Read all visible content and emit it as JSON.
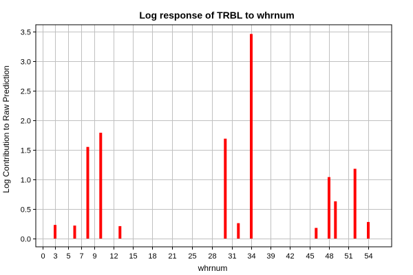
{
  "chart_data": {
    "type": "bar",
    "title": "Log response of TRBL to whrnum",
    "xlabel": "whrnum",
    "ylabel": "Log Contribution to Raw Prediction",
    "x_ticks": [
      "0",
      "3",
      "5",
      "7",
      "9",
      "12",
      "15",
      "18",
      "21",
      "25",
      "28",
      "31",
      "34",
      "39",
      "42",
      "45",
      "48",
      "51",
      "54"
    ],
    "y_ticks": [
      "0.0",
      "0.5",
      "1.0",
      "1.5",
      "2.0",
      "2.5",
      "3.0",
      "3.5"
    ],
    "ylim": [
      -0.15,
      3.6
    ],
    "grid": true,
    "colors": {
      "bar": "#ff0000",
      "grid": "#c0c0c0",
      "frame": "#000000"
    },
    "points": [
      {
        "x": 3,
        "y": 0.23
      },
      {
        "x": 6,
        "y": 0.22
      },
      {
        "x": 8,
        "y": 1.55
      },
      {
        "x": 10,
        "y": 1.79
      },
      {
        "x": 13,
        "y": 0.21
      },
      {
        "x": 30,
        "y": 1.69
      },
      {
        "x": 32,
        "y": 0.26
      },
      {
        "x": 34,
        "y": 3.46
      },
      {
        "x": 46,
        "y": 0.18
      },
      {
        "x": 48,
        "y": 1.04
      },
      {
        "x": 49,
        "y": 0.63
      },
      {
        "x": 52,
        "y": 1.18
      },
      {
        "x": 54,
        "y": 0.28
      }
    ]
  }
}
